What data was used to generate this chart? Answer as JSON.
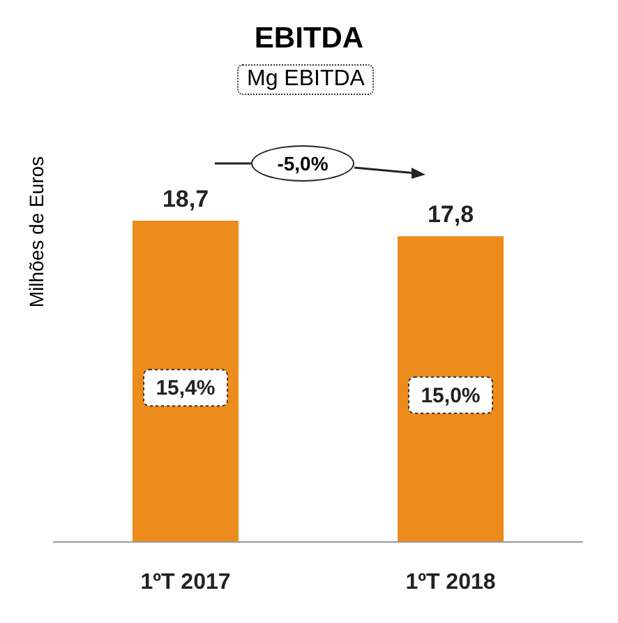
{
  "chart_data": {
    "type": "bar",
    "title": "EBITDA",
    "subtitle": "Mg EBITDA",
    "ylabel": "Milhões de Euros",
    "categories": [
      "1ºT 2017",
      "1ºT 2018"
    ],
    "values": [
      18.7,
      17.8
    ],
    "value_labels": [
      "18,7",
      "17,8"
    ],
    "color": "#ec8c1c",
    "legend": false,
    "grid": false,
    "annotations": [
      "-5,0%",
      "15,4%",
      "15,0%"
    ]
  }
}
